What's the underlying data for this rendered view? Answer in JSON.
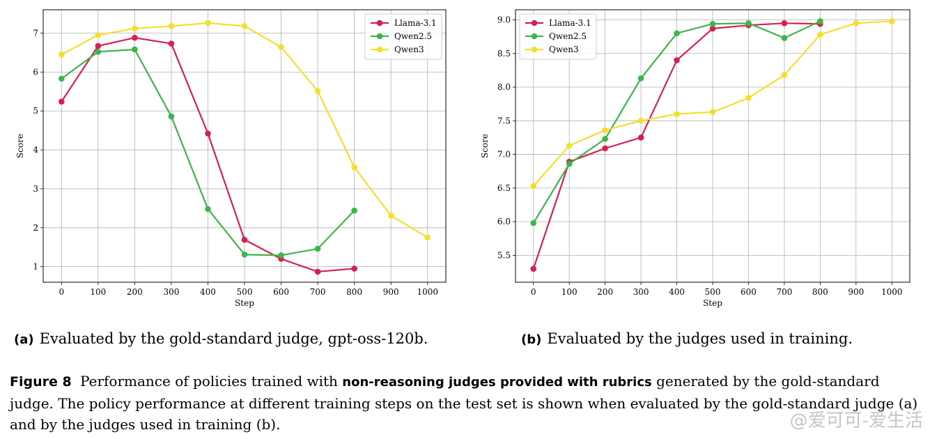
{
  "chart_data": [
    {
      "type": "line",
      "title": "",
      "xlabel": "Step",
      "ylabel": "Score",
      "xlim": [
        -50,
        1050
      ],
      "ylim": [
        0.6,
        7.6
      ],
      "xticks": [
        0,
        100,
        200,
        300,
        400,
        500,
        600,
        700,
        800,
        900,
        1000
      ],
      "xtick_labels": [
        "0",
        "100",
        "200",
        "300",
        "400",
        "500",
        "600",
        "700",
        "800",
        "900",
        "1000"
      ],
      "yticks": [
        1,
        2,
        3,
        4,
        5,
        6,
        7
      ],
      "ytick_labels": [
        "1",
        "2",
        "3",
        "4",
        "5",
        "6",
        "7"
      ],
      "grid": true,
      "legend_position": "top-right",
      "series": [
        {
          "name": "Llama-3.1",
          "color": "#d62050",
          "x": [
            0,
            100,
            200,
            300,
            400,
            500,
            600,
            700,
            800
          ],
          "values": [
            5.24,
            6.67,
            6.88,
            6.73,
            4.42,
            1.69,
            1.2,
            0.87,
            0.95
          ]
        },
        {
          "name": "Qwen2.5",
          "color": "#3db54a",
          "x": [
            0,
            100,
            200,
            300,
            400,
            500,
            600,
            700,
            800
          ],
          "values": [
            5.83,
            6.52,
            6.58,
            4.86,
            2.48,
            1.31,
            1.29,
            1.46,
            2.44
          ]
        },
        {
          "name": "Qwen3",
          "color": "#f5df2e",
          "x": [
            0,
            100,
            200,
            300,
            400,
            500,
            600,
            700,
            800,
            900,
            1000
          ],
          "values": [
            6.45,
            6.95,
            7.12,
            7.18,
            7.26,
            7.18,
            6.64,
            5.51,
            3.55,
            2.31,
            1.75
          ]
        }
      ]
    },
    {
      "type": "line",
      "title": "",
      "xlabel": "Step",
      "ylabel": "Score",
      "xlim": [
        -50,
        1050
      ],
      "ylim": [
        5.1,
        9.15
      ],
      "xticks": [
        0,
        100,
        200,
        300,
        400,
        500,
        600,
        700,
        800,
        900,
        1000
      ],
      "xtick_labels": [
        "0",
        "100",
        "200",
        "300",
        "400",
        "500",
        "600",
        "700",
        "800",
        "900",
        "1000"
      ],
      "yticks": [
        5.5,
        6.0,
        6.5,
        7.0,
        7.5,
        8.0,
        8.5,
        9.0
      ],
      "ytick_labels": [
        "5.5",
        "6.0",
        "6.5",
        "7.0",
        "7.5",
        "8.0",
        "8.5",
        "9.0"
      ],
      "grid": true,
      "legend_position": "top-left",
      "series": [
        {
          "name": "Llama-3.1",
          "color": "#d62050",
          "x": [
            0,
            100,
            200,
            300,
            400,
            500,
            600,
            700,
            800
          ],
          "values": [
            5.3,
            6.89,
            7.09,
            7.25,
            8.4,
            8.87,
            8.92,
            8.95,
            8.94
          ]
        },
        {
          "name": "Qwen2.5",
          "color": "#3db54a",
          "x": [
            0,
            100,
            200,
            300,
            400,
            500,
            600,
            700,
            800
          ],
          "values": [
            5.98,
            6.86,
            7.23,
            8.13,
            8.8,
            8.94,
            8.95,
            8.73,
            8.98
          ]
        },
        {
          "name": "Qwen3",
          "color": "#f5df2e",
          "x": [
            0,
            100,
            200,
            300,
            400,
            500,
            600,
            700,
            800,
            900,
            1000
          ],
          "values": [
            6.53,
            7.13,
            7.36,
            7.5,
            7.6,
            7.63,
            7.84,
            8.18,
            8.78,
            8.95,
            8.98
          ]
        }
      ]
    }
  ],
  "captions": {
    "a": {
      "label": "(a)",
      "text": "Evaluated by the gold-standard judge, gpt-oss-120b."
    },
    "b": {
      "label": "(b)",
      "text": "Evaluated by the judges used in training."
    }
  },
  "figure_caption": {
    "label": "Figure 8",
    "text_before": "Performance of policies trained with",
    "bold_text": "non-reasoning judges provided with rubrics",
    "text_after": "generated by the gold-standard judge. The policy performance at different training steps on the test set is shown when evaluated by the gold-standard judge (a) and by the judges used in training (b)."
  },
  "watermark": "@爱可可-爱生活"
}
